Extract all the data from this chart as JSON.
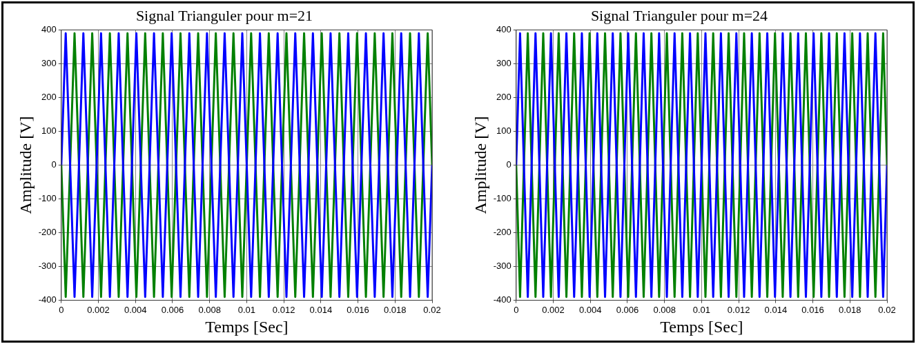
{
  "chart_data": [
    {
      "type": "line",
      "title": "Signal Trianguler pour m=21",
      "xlabel": "Temps [Sec]",
      "ylabel": "Amplitude [V]",
      "x": [
        0,
        0.000238,
        0.000714,
        0.00119,
        0.001667,
        0.002143,
        0.002619,
        0.003095,
        0.003571,
        0.004048,
        0.004524,
        0.005,
        0.005476,
        0.005952,
        0.006429,
        0.006905,
        0.007381,
        0.007857,
        0.008333,
        0.00881,
        0.009286,
        0.009762,
        0.010238,
        0.010714,
        0.01119,
        0.011667,
        0.012143,
        0.012619,
        0.013095,
        0.013571,
        0.014048,
        0.014524,
        0.015,
        0.015476,
        0.015952,
        0.016429,
        0.016905,
        0.017381,
        0.017857,
        0.018333,
        0.01881,
        0.019286,
        0.019762,
        0.02
      ],
      "series": [
        {
          "color": "#0000ff",
          "values": [
            0,
            390,
            -390,
            390,
            -390,
            390,
            -390,
            390,
            -390,
            390,
            -390,
            390,
            -390,
            390,
            -390,
            390,
            -390,
            390,
            -390,
            390,
            -390,
            390,
            -390,
            390,
            -390,
            390,
            -390,
            390,
            -390,
            390,
            -390,
            390,
            -390,
            390,
            -390,
            390,
            -390,
            390,
            -390,
            390,
            -390,
            390,
            -390,
            0
          ]
        },
        {
          "color": "#008000",
          "values": [
            0,
            -390,
            390,
            -390,
            390,
            -390,
            390,
            -390,
            390,
            -390,
            390,
            -390,
            390,
            -390,
            390,
            -390,
            390,
            -390,
            390,
            -390,
            390,
            -390,
            390,
            -390,
            390,
            -390,
            390,
            -390,
            390,
            -390,
            390,
            -390,
            390,
            -390,
            390,
            -390,
            390,
            -390,
            390,
            -390,
            390,
            -390,
            390,
            0
          ]
        }
      ],
      "xlim": [
        0,
        0.02
      ],
      "xticks": [
        0,
        0.002,
        0.004,
        0.006,
        0.008,
        0.01,
        0.012,
        0.014,
        0.016,
        0.018,
        0.02
      ],
      "ylim": [
        -400,
        400
      ],
      "yticks": [
        -400,
        -300,
        -200,
        -100,
        0,
        100,
        200,
        300,
        400
      ],
      "grid": true,
      "marker": "none",
      "line_style": "solid",
      "legend": false
    },
    {
      "type": "line",
      "title": "Signal Trianguler pour m=24",
      "xlabel": "Temps [Sec]",
      "ylabel": "Amplitude [V]",
      "x": [
        0,
        0.000208,
        0.000625,
        0.001042,
        0.001458,
        0.001875,
        0.002292,
        0.002708,
        0.003125,
        0.003542,
        0.003958,
        0.004375,
        0.004792,
        0.005208,
        0.005625,
        0.006042,
        0.006458,
        0.006875,
        0.007292,
        0.007708,
        0.008125,
        0.008542,
        0.008958,
        0.009375,
        0.009792,
        0.010208,
        0.010625,
        0.011042,
        0.011458,
        0.011875,
        0.012292,
        0.012708,
        0.013125,
        0.013542,
        0.013958,
        0.014375,
        0.014792,
        0.015208,
        0.015625,
        0.016042,
        0.016458,
        0.016875,
        0.017292,
        0.017708,
        0.018125,
        0.018542,
        0.018958,
        0.019375,
        0.019792,
        0.02
      ],
      "series": [
        {
          "color": "#0000ff",
          "values": [
            0,
            390,
            -390,
            390,
            -390,
            390,
            -390,
            390,
            -390,
            390,
            -390,
            390,
            -390,
            390,
            -390,
            390,
            -390,
            390,
            -390,
            390,
            -390,
            390,
            -390,
            390,
            -390,
            390,
            -390,
            390,
            -390,
            390,
            -390,
            390,
            -390,
            390,
            -390,
            390,
            -390,
            390,
            -390,
            390,
            -390,
            390,
            -390,
            390,
            -390,
            390,
            -390,
            390,
            -390,
            0
          ]
        },
        {
          "color": "#008000",
          "values": [
            0,
            -390,
            390,
            -390,
            390,
            -390,
            390,
            -390,
            390,
            -390,
            390,
            -390,
            390,
            -390,
            390,
            -390,
            390,
            -390,
            390,
            -390,
            390,
            -390,
            390,
            -390,
            390,
            -390,
            390,
            -390,
            390,
            -390,
            390,
            -390,
            390,
            -390,
            390,
            -390,
            390,
            -390,
            390,
            -390,
            390,
            -390,
            390,
            -390,
            390,
            -390,
            390,
            -390,
            390,
            0
          ]
        }
      ],
      "xlim": [
        0,
        0.02
      ],
      "xticks": [
        0,
        0.002,
        0.004,
        0.006,
        0.008,
        0.01,
        0.012,
        0.014,
        0.016,
        0.018,
        0.02
      ],
      "ylim": [
        -400,
        400
      ],
      "yticks": [
        -400,
        -300,
        -200,
        -100,
        0,
        100,
        200,
        300,
        400
      ],
      "grid": true,
      "marker": "none",
      "line_style": "solid",
      "legend": false
    }
  ]
}
